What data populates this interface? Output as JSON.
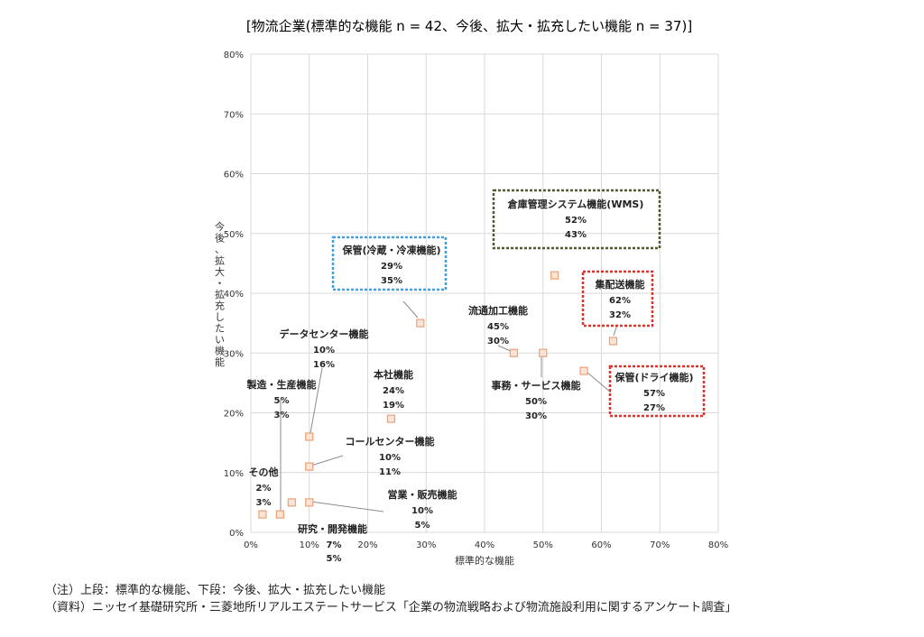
{
  "chart_data": {
    "type": "scatter",
    "title": "[物流企業(標準的な機能 n = 42、今後、拡大・拡充したい機能 n = 37)]",
    "xlabel": "標準的な機能",
    "ylabel": "今後、拡大・拡充したい機能",
    "xlim": [
      0,
      80
    ],
    "ylim": [
      0,
      80
    ],
    "x_ticks": [
      "0%",
      "10%",
      "20%",
      "30%",
      "40%",
      "50%",
      "60%",
      "70%",
      "80%"
    ],
    "y_ticks": [
      "0%",
      "10%",
      "20%",
      "30%",
      "40%",
      "50%",
      "60%",
      "70%",
      "80%"
    ],
    "grid": true,
    "marker_color": "#e9a27a",
    "marker_fill": "#fbe4d6",
    "points": [
      {
        "name": "その他",
        "x": 2,
        "y": 3,
        "x_label": "2%",
        "y_label": "3%"
      },
      {
        "name": "製造・生産機能",
        "x": 5,
        "y": 3,
        "x_label": "5%",
        "y_label": "3%"
      },
      {
        "name": "研究・開発機能",
        "x": 7,
        "y": 5,
        "x_label": "7%",
        "y_label": "5%"
      },
      {
        "name": "営業・販売機能",
        "x": 10,
        "y": 5,
        "x_label": "10%",
        "y_label": "5%"
      },
      {
        "name": "コールセンター機能",
        "x": 10,
        "y": 11,
        "x_label": "10%",
        "y_label": "11%"
      },
      {
        "name": "データセンター機能",
        "x": 10,
        "y": 16,
        "x_label": "10%",
        "y_label": "16%"
      },
      {
        "name": "本社機能",
        "x": 24,
        "y": 19,
        "x_label": "24%",
        "y_label": "19%"
      },
      {
        "name": "保管(冷蔵・冷凍機能)",
        "x": 29,
        "y": 35,
        "x_label": "29%",
        "y_label": "35%"
      },
      {
        "name": "流通加工機能",
        "x": 45,
        "y": 30,
        "x_label": "45%",
        "y_label": "30%"
      },
      {
        "name": "事務・サービス機能",
        "x": 50,
        "y": 30,
        "x_label": "50%",
        "y_label": "30%"
      },
      {
        "name": "倉庫管理システム機能(WMS)",
        "x": 52,
        "y": 43,
        "x_label": "52%",
        "y_label": "43%"
      },
      {
        "name": "保管(ドライ機能)",
        "x": 57,
        "y": 27,
        "x_label": "57%",
        "y_label": "27%"
      },
      {
        "name": "集配送機能",
        "x": 62,
        "y": 32,
        "x_label": "62%",
        "y_label": "32%"
      }
    ],
    "highlight_colors": {
      "倉庫管理システム機能(WMS)": "#4f5a2a",
      "保管(冷蔵・冷凍機能)": "#3ea0dc",
      "集配送機能": "#e0302a",
      "保管(ドライ機能)": "#e0302a"
    }
  },
  "notes": {
    "line1": "（注）上段：標準的な機能、下段：今後、拡大・拡充したい機能",
    "line2": "（資料）ニッセイ基礎研究所・三菱地所リアルエステートサービス「企業の物流戦略および物流施設利用に関するアンケート調査」"
  }
}
